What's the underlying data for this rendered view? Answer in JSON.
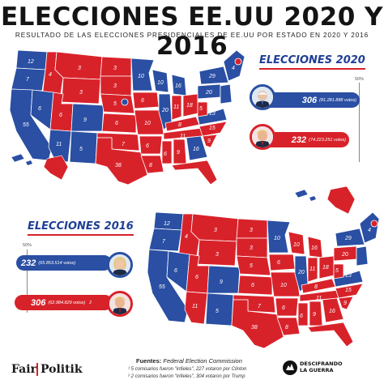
{
  "title": "ELECCIONES EE.UU 2020 Y 2016",
  "subtitle": "RESULTADO DE LAS ELECCIONES PRESIDENCIALES DE EE.UU POR ESTADO EN 2020 Y 2016",
  "colors": {
    "democrat": "#2a4fa3",
    "republican": "#d8222a",
    "map_border": "#ffffff"
  },
  "elections": [
    {
      "label": "ELECCIONES 2020",
      "threshold": "50%",
      "candidates": [
        {
          "party": "democrat",
          "electoral_votes": "306",
          "popular_votes": "(81.281.888 votos)",
          "footnote": "",
          "icon": "biden-portrait"
        },
        {
          "party": "republican",
          "electoral_votes": "232",
          "popular_votes": "(74.223.251 votos)",
          "footnote": "",
          "icon": "trump-portrait"
        }
      ],
      "state_labels": [
        "3",
        "4",
        "3",
        "6",
        "3",
        "3",
        "10",
        "10",
        "4",
        "3",
        "55",
        "6",
        "6",
        "11",
        "9",
        "5",
        "7",
        "8",
        "5",
        "20",
        "16",
        "11",
        "6",
        "6",
        "13",
        "29",
        "16",
        "11",
        "38",
        "6",
        "11",
        "18",
        "6",
        "15",
        "16",
        "9",
        "6",
        "11",
        "8",
        "3",
        "4",
        "9",
        "3",
        "3",
        "4",
        "1",
        "6",
        "10",
        "12",
        "1",
        "3",
        "1",
        "3",
        "3",
        "3",
        "5",
        "10",
        "14"
      ]
    },
    {
      "label": "ELECCIONES 2016",
      "threshold": "50%",
      "candidates": [
        {
          "party": "democrat",
          "electoral_votes": "232",
          "popular_votes": "(65.853.514 votos)",
          "footnote": "",
          "icon": "clinton-portrait"
        },
        {
          "party": "republican",
          "electoral_votes": "306",
          "popular_votes": "(62.984.829 votos)",
          "footnote": "2",
          "icon": "trump-portrait"
        }
      ],
      "state_labels": [
        "3",
        "6",
        "4",
        "3",
        "3",
        "10",
        "10",
        "4",
        "3",
        "55",
        "6",
        "6",
        "9",
        "11",
        "5",
        "7",
        "8",
        "20",
        "16",
        "11",
        "6",
        "6",
        "13",
        "29",
        "16",
        "11",
        "38",
        "11",
        "18",
        "6",
        "15",
        "16",
        "9",
        "6",
        "11",
        "8",
        "3",
        "4",
        "1",
        "3",
        "2",
        "10",
        "14",
        "4",
        "3",
        "3",
        "4",
        "3",
        "5",
        "10",
        "12"
      ]
    }
  ],
  "footer": {
    "logo_left": "Fair",
    "logo_right": "Politik",
    "sources_label": "Fuentes:",
    "sources_value": "Federal Election Commission",
    "notes": [
      "¹ 5 comisarios fueron \"infieles\", 227 votaron por Clinton",
      "² 2 comisarios fueron \"infieles\", 304 votaron por Trump"
    ],
    "brand_line1": "DESCIFRANDO",
    "brand_line2": "LA GUERRA"
  }
}
